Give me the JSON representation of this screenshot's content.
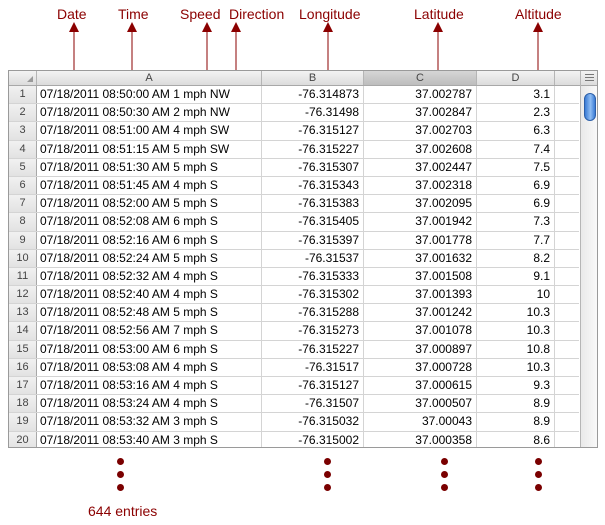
{
  "annotations": {
    "date": "Date",
    "time": "Time",
    "speed": "Speed",
    "direction": "Direction",
    "longitude": "Longitude",
    "latitude": "Latitude",
    "altitude": "Altitude"
  },
  "colors": {
    "annotation": "#8b0000",
    "dots": "#7a0000",
    "scroll_thumb": "#3a7bd5"
  },
  "columns": [
    "A",
    "B",
    "C",
    "D"
  ],
  "selected_column": "C",
  "rows": [
    {
      "n": "1",
      "a": "07/18/2011 08:50:00 AM 1 mph NW",
      "b": "-76.314873",
      "c": "37.002787",
      "d": "3.1"
    },
    {
      "n": "2",
      "a": "07/18/2011 08:50:30 AM 2 mph NW",
      "b": "-76.31498",
      "c": "37.002847",
      "d": "2.3"
    },
    {
      "n": "3",
      "a": "07/18/2011 08:51:00 AM 4 mph SW",
      "b": "-76.315127",
      "c": "37.002703",
      "d": "6.3"
    },
    {
      "n": "4",
      "a": "07/18/2011 08:51:15 AM 5 mph SW",
      "b": "-76.315227",
      "c": "37.002608",
      "d": "7.4"
    },
    {
      "n": "5",
      "a": "07/18/2011 08:51:30 AM 5 mph S",
      "b": "-76.315307",
      "c": "37.002447",
      "d": "7.5"
    },
    {
      "n": "6",
      "a": "07/18/2011 08:51:45 AM 4 mph S",
      "b": "-76.315343",
      "c": "37.002318",
      "d": "6.9"
    },
    {
      "n": "7",
      "a": "07/18/2011 08:52:00 AM 5 mph S",
      "b": "-76.315383",
      "c": "37.002095",
      "d": "6.9"
    },
    {
      "n": "8",
      "a": "07/18/2011 08:52:08 AM 6 mph S",
      "b": "-76.315405",
      "c": "37.001942",
      "d": "7.3"
    },
    {
      "n": "9",
      "a": "07/18/2011 08:52:16 AM 6 mph S",
      "b": "-76.315397",
      "c": "37.001778",
      "d": "7.7"
    },
    {
      "n": "10",
      "a": "07/18/2011 08:52:24 AM 5 mph S",
      "b": "-76.31537",
      "c": "37.001632",
      "d": "8.2"
    },
    {
      "n": "11",
      "a": "07/18/2011 08:52:32 AM 4 mph S",
      "b": "-76.315333",
      "c": "37.001508",
      "d": "9.1"
    },
    {
      "n": "12",
      "a": "07/18/2011 08:52:40 AM 4 mph S",
      "b": "-76.315302",
      "c": "37.001393",
      "d": "10"
    },
    {
      "n": "13",
      "a": "07/18/2011 08:52:48 AM 5 mph S",
      "b": "-76.315288",
      "c": "37.001242",
      "d": "10.3"
    },
    {
      "n": "14",
      "a": "07/18/2011 08:52:56 AM 7 mph S",
      "b": "-76.315273",
      "c": "37.001078",
      "d": "10.3"
    },
    {
      "n": "15",
      "a": "07/18/2011 08:53:00 AM 6 mph S",
      "b": "-76.315227",
      "c": "37.000897",
      "d": "10.8"
    },
    {
      "n": "16",
      "a": "07/18/2011 08:53:08 AM 4 mph S",
      "b": "-76.31517",
      "c": "37.000728",
      "d": "10.3"
    },
    {
      "n": "17",
      "a": "07/18/2011 08:53:16 AM 4 mph S",
      "b": "-76.315127",
      "c": "37.000615",
      "d": "9.3"
    },
    {
      "n": "18",
      "a": "07/18/2011 08:53:24 AM 4 mph S",
      "b": "-76.31507",
      "c": "37.000507",
      "d": "8.9"
    },
    {
      "n": "19",
      "a": "07/18/2011 08:53:32 AM 3 mph S",
      "b": "-76.315032",
      "c": "37.00043",
      "d": "8.9"
    },
    {
      "n": "20",
      "a": "07/18/2011 08:53:40 AM 3 mph S",
      "b": "-76.315002",
      "c": "37.000358",
      "d": "8.6"
    }
  ],
  "footer": {
    "entries_label": "644 entries"
  }
}
